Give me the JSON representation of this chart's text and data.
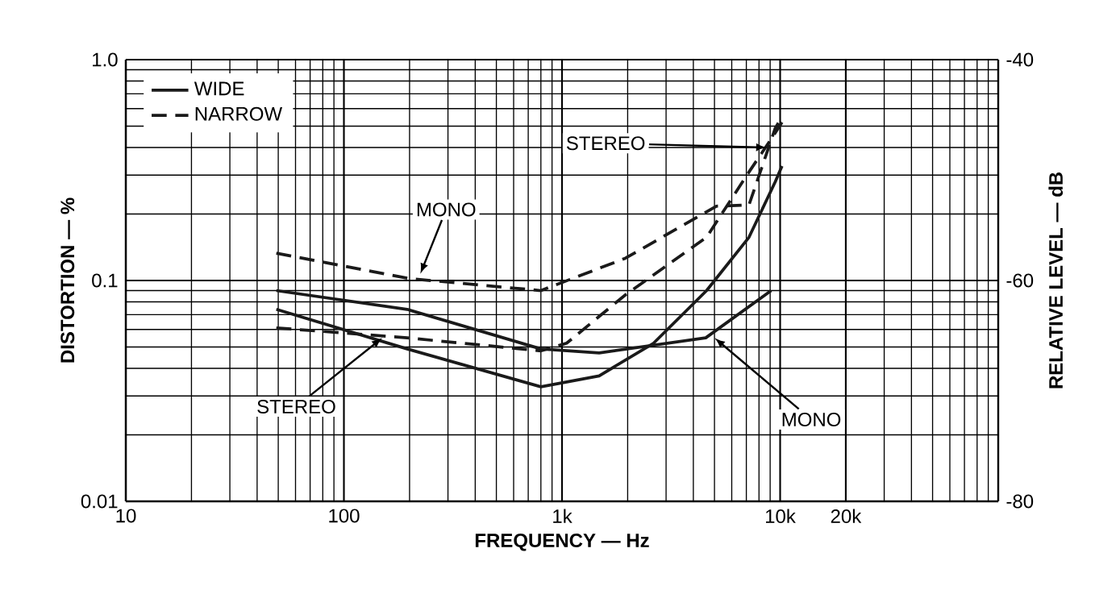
{
  "chart_data": {
    "type": "line",
    "xlabel": "FREQUENCY — Hz",
    "ylabel": "DISTORTION — %",
    "y2label": "RELATIVE LEVEL — dB",
    "log": "xy",
    "grid": true,
    "legend": "top left",
    "xlim": [
      10,
      100000
    ],
    "xticks": [
      10,
      100,
      {
        "value": 1000,
        "label": "1k"
      },
      {
        "value": 10000,
        "label": "10k"
      },
      {
        "value": 20000,
        "label": "20k"
      }
    ],
    "ylim": [
      0.01,
      1
    ],
    "yticks": [
      0.01,
      0.1,
      {
        "value": 1,
        "label": "1.0"
      }
    ],
    "y2lim": [
      -80,
      -40
    ],
    "y2ticks": [
      -80,
      -60,
      -40
    ],
    "series": [
      {
        "name": "WIDE",
        "color": "#1a1a1a",
        "line_style": "solid",
        "x": [
          49,
          195,
          800,
          1480,
          4560,
          9100
        ],
        "values": [
          0.09,
          0.074,
          0.049,
          0.047,
          0.055,
          0.09
        ]
      },
      {
        "name": "NARROW",
        "color": "#1a1a1a",
        "line_style": "dashed",
        "x": [
          49,
          200,
          800,
          1950,
          5100,
          7200,
          9500,
          10200
        ],
        "values": [
          0.133,
          0.102,
          0.09,
          0.126,
          0.217,
          0.22,
          0.49,
          0.55
        ]
      },
      {
        "color": "#1a1a1a",
        "line_style": "solid",
        "x": [
          49,
          195,
          800,
          1480,
          2630,
          4600,
          7200,
          9500,
          10200
        ],
        "values": [
          0.074,
          0.049,
          0.033,
          0.037,
          0.052,
          0.09,
          0.157,
          0.28,
          0.33
        ]
      },
      {
        "color": "#1a1a1a",
        "line_style": "dashed",
        "x": [
          49,
          195,
          800,
          1050,
          1950,
          4600,
          7200,
          9000,
          10200
        ],
        "values": [
          0.061,
          0.055,
          0.048,
          0.052,
          0.086,
          0.157,
          0.31,
          0.43,
          0.52
        ]
      }
    ],
    "annotations": [
      {
        "text": "MONO",
        "x": 224,
        "y": 0.107
      },
      {
        "text": "STEREO",
        "x": 150,
        "y": 0.055
      },
      {
        "text": "STEREO",
        "x": 8700,
        "y": 0.4
      },
      {
        "text": "MONO",
        "x": 5000,
        "y": 0.055
      }
    ]
  }
}
